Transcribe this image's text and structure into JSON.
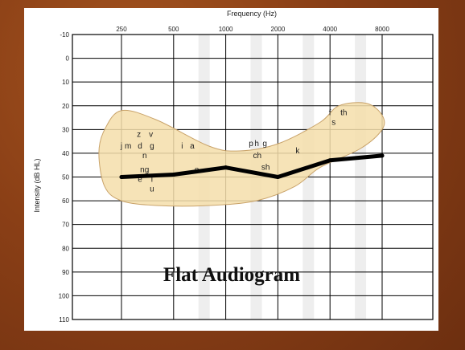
{
  "chart_data": {
    "type": "line",
    "title": "Flat Audiogram",
    "xlabel": "Frequency (Hz)",
    "ylabel": "Intensity (dB HL)",
    "x_ticks": [
      "250",
      "500",
      "1000",
      "2000",
      "4000",
      "8000"
    ],
    "y_ticks": [
      "-10",
      "0",
      "10",
      "20",
      "30",
      "40",
      "50",
      "60",
      "70",
      "80",
      "90",
      "100",
      "110"
    ],
    "ylim": [
      -10,
      110
    ],
    "y_inverted": true,
    "x_scale": "log",
    "grid": true,
    "series": [
      {
        "x": [
          250,
          500,
          1000,
          2000,
          4000,
          8000
        ],
        "values": [
          50,
          49,
          46,
          50,
          43,
          41
        ]
      }
    ],
    "speech_banana_color": "#f4deaa",
    "line_color": "#000000",
    "phonemes": [
      {
        "text": "z",
        "freq": 315,
        "db": 32
      },
      {
        "text": "v",
        "freq": 370,
        "db": 32
      },
      {
        "text": "j",
        "freq": 250,
        "db": 37
      },
      {
        "text": "m",
        "freq": 273,
        "db": 37
      },
      {
        "text": "d",
        "freq": 320,
        "db": 37
      },
      {
        "text": "g",
        "freq": 375,
        "db": 37
      },
      {
        "text": "n",
        "freq": 340,
        "db": 41
      },
      {
        "text": "ng",
        "freq": 340,
        "db": 47
      },
      {
        "text": "e",
        "freq": 320,
        "db": 51
      },
      {
        "text": "l",
        "freq": 375,
        "db": 51
      },
      {
        "text": "u",
        "freq": 375,
        "db": 55
      },
      {
        "text": "i",
        "freq": 560,
        "db": 37
      },
      {
        "text": "a",
        "freq": 640,
        "db": 37
      },
      {
        "text": "o",
        "freq": 680,
        "db": 47
      },
      {
        "text": "p",
        "freq": 1400,
        "db": 36
      },
      {
        "text": "h",
        "freq": 1510,
        "db": 36
      },
      {
        "text": "g",
        "freq": 1680,
        "db": 36
      },
      {
        "text": "ch",
        "freq": 1520,
        "db": 41
      },
      {
        "text": "sh",
        "freq": 1700,
        "db": 46
      },
      {
        "text": "k",
        "freq": 2600,
        "db": 39
      },
      {
        "text": "f",
        "freq": 4000,
        "db": 23
      },
      {
        "text": "th",
        "freq": 4800,
        "db": 23
      },
      {
        "text": "s",
        "freq": 4200,
        "db": 27
      }
    ]
  }
}
